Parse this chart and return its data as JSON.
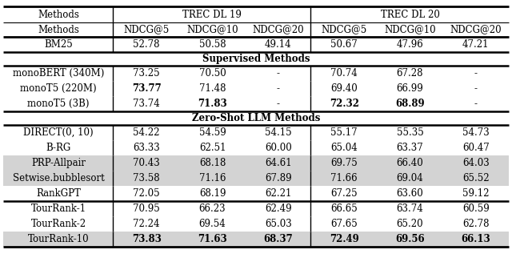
{
  "col_headers_line2": [
    "Methods",
    "NDCG@5",
    "NDCG@10",
    "NDCG@20",
    "NDCG@5",
    "NDCG@10",
    "NDCG@20"
  ],
  "section_bm25": {
    "rows": [
      {
        "method": "BM25",
        "vals": [
          "52.78",
          "50.58",
          "49.14",
          "50.67",
          "47.96",
          "47.21"
        ],
        "bold": []
      }
    ]
  },
  "section_supervised_label": "Supervised Methods",
  "section_supervised": {
    "rows": [
      {
        "method": "monoBERT (340M)",
        "vals": [
          "73.25",
          "70.50",
          "-",
          "70.74",
          "67.28",
          "-"
        ],
        "bold": []
      },
      {
        "method": "monoT5 (220M)",
        "vals": [
          "73.77",
          "71.48",
          "-",
          "69.40",
          "66.99",
          "-"
        ],
        "bold": [
          0
        ]
      },
      {
        "method": "monoT5 (3B)",
        "vals": [
          "73.74",
          "71.83",
          "-",
          "72.32",
          "68.89",
          "-"
        ],
        "bold": [
          1,
          3,
          4
        ]
      }
    ]
  },
  "section_zeroshot_label": "Zero-Shot LLM Methods",
  "section_zeroshot": {
    "rows": [
      {
        "method": "DIRECT(0, 10)",
        "vals": [
          "54.22",
          "54.59",
          "54.15",
          "55.17",
          "55.35",
          "54.73"
        ],
        "bold": [],
        "bg": false
      },
      {
        "method": "B-RG",
        "vals": [
          "63.33",
          "62.51",
          "60.00",
          "65.04",
          "63.37",
          "60.47"
        ],
        "bold": [],
        "bg": false
      },
      {
        "method": "PRP-Allpair",
        "vals": [
          "70.43",
          "68.18",
          "64.61",
          "69.75",
          "66.40",
          "64.03"
        ],
        "bold": [],
        "bg": true
      },
      {
        "method": "Setwise.bubblesort",
        "vals": [
          "73.58",
          "71.16",
          "67.89",
          "71.66",
          "69.04",
          "65.52"
        ],
        "bold": [],
        "bg": true
      },
      {
        "method": "RankGPT",
        "vals": [
          "72.05",
          "68.19",
          "62.21",
          "67.25",
          "63.60",
          "59.12"
        ],
        "bold": [],
        "bg": false
      }
    ]
  },
  "section_tourrank": {
    "rows": [
      {
        "method": "TourRank-1",
        "vals": [
          "70.95",
          "66.23",
          "62.49",
          "66.65",
          "63.74",
          "60.59"
        ],
        "bold": [],
        "bg": false
      },
      {
        "method": "TourRank-2",
        "vals": [
          "72.24",
          "69.54",
          "65.03",
          "67.65",
          "65.20",
          "62.78"
        ],
        "bold": [],
        "bg": false
      },
      {
        "method": "TourRank-10",
        "vals": [
          "73.83",
          "71.63",
          "68.37",
          "72.49",
          "69.56",
          "66.13"
        ],
        "bold": [
          0,
          1,
          2,
          3,
          4,
          5
        ],
        "bg": true
      }
    ]
  },
  "bg_color": "#d3d3d3",
  "font_size": 8.5,
  "header_font_size": 8.5,
  "figwidth": 6.4,
  "figheight": 3.47,
  "dpi": 100
}
